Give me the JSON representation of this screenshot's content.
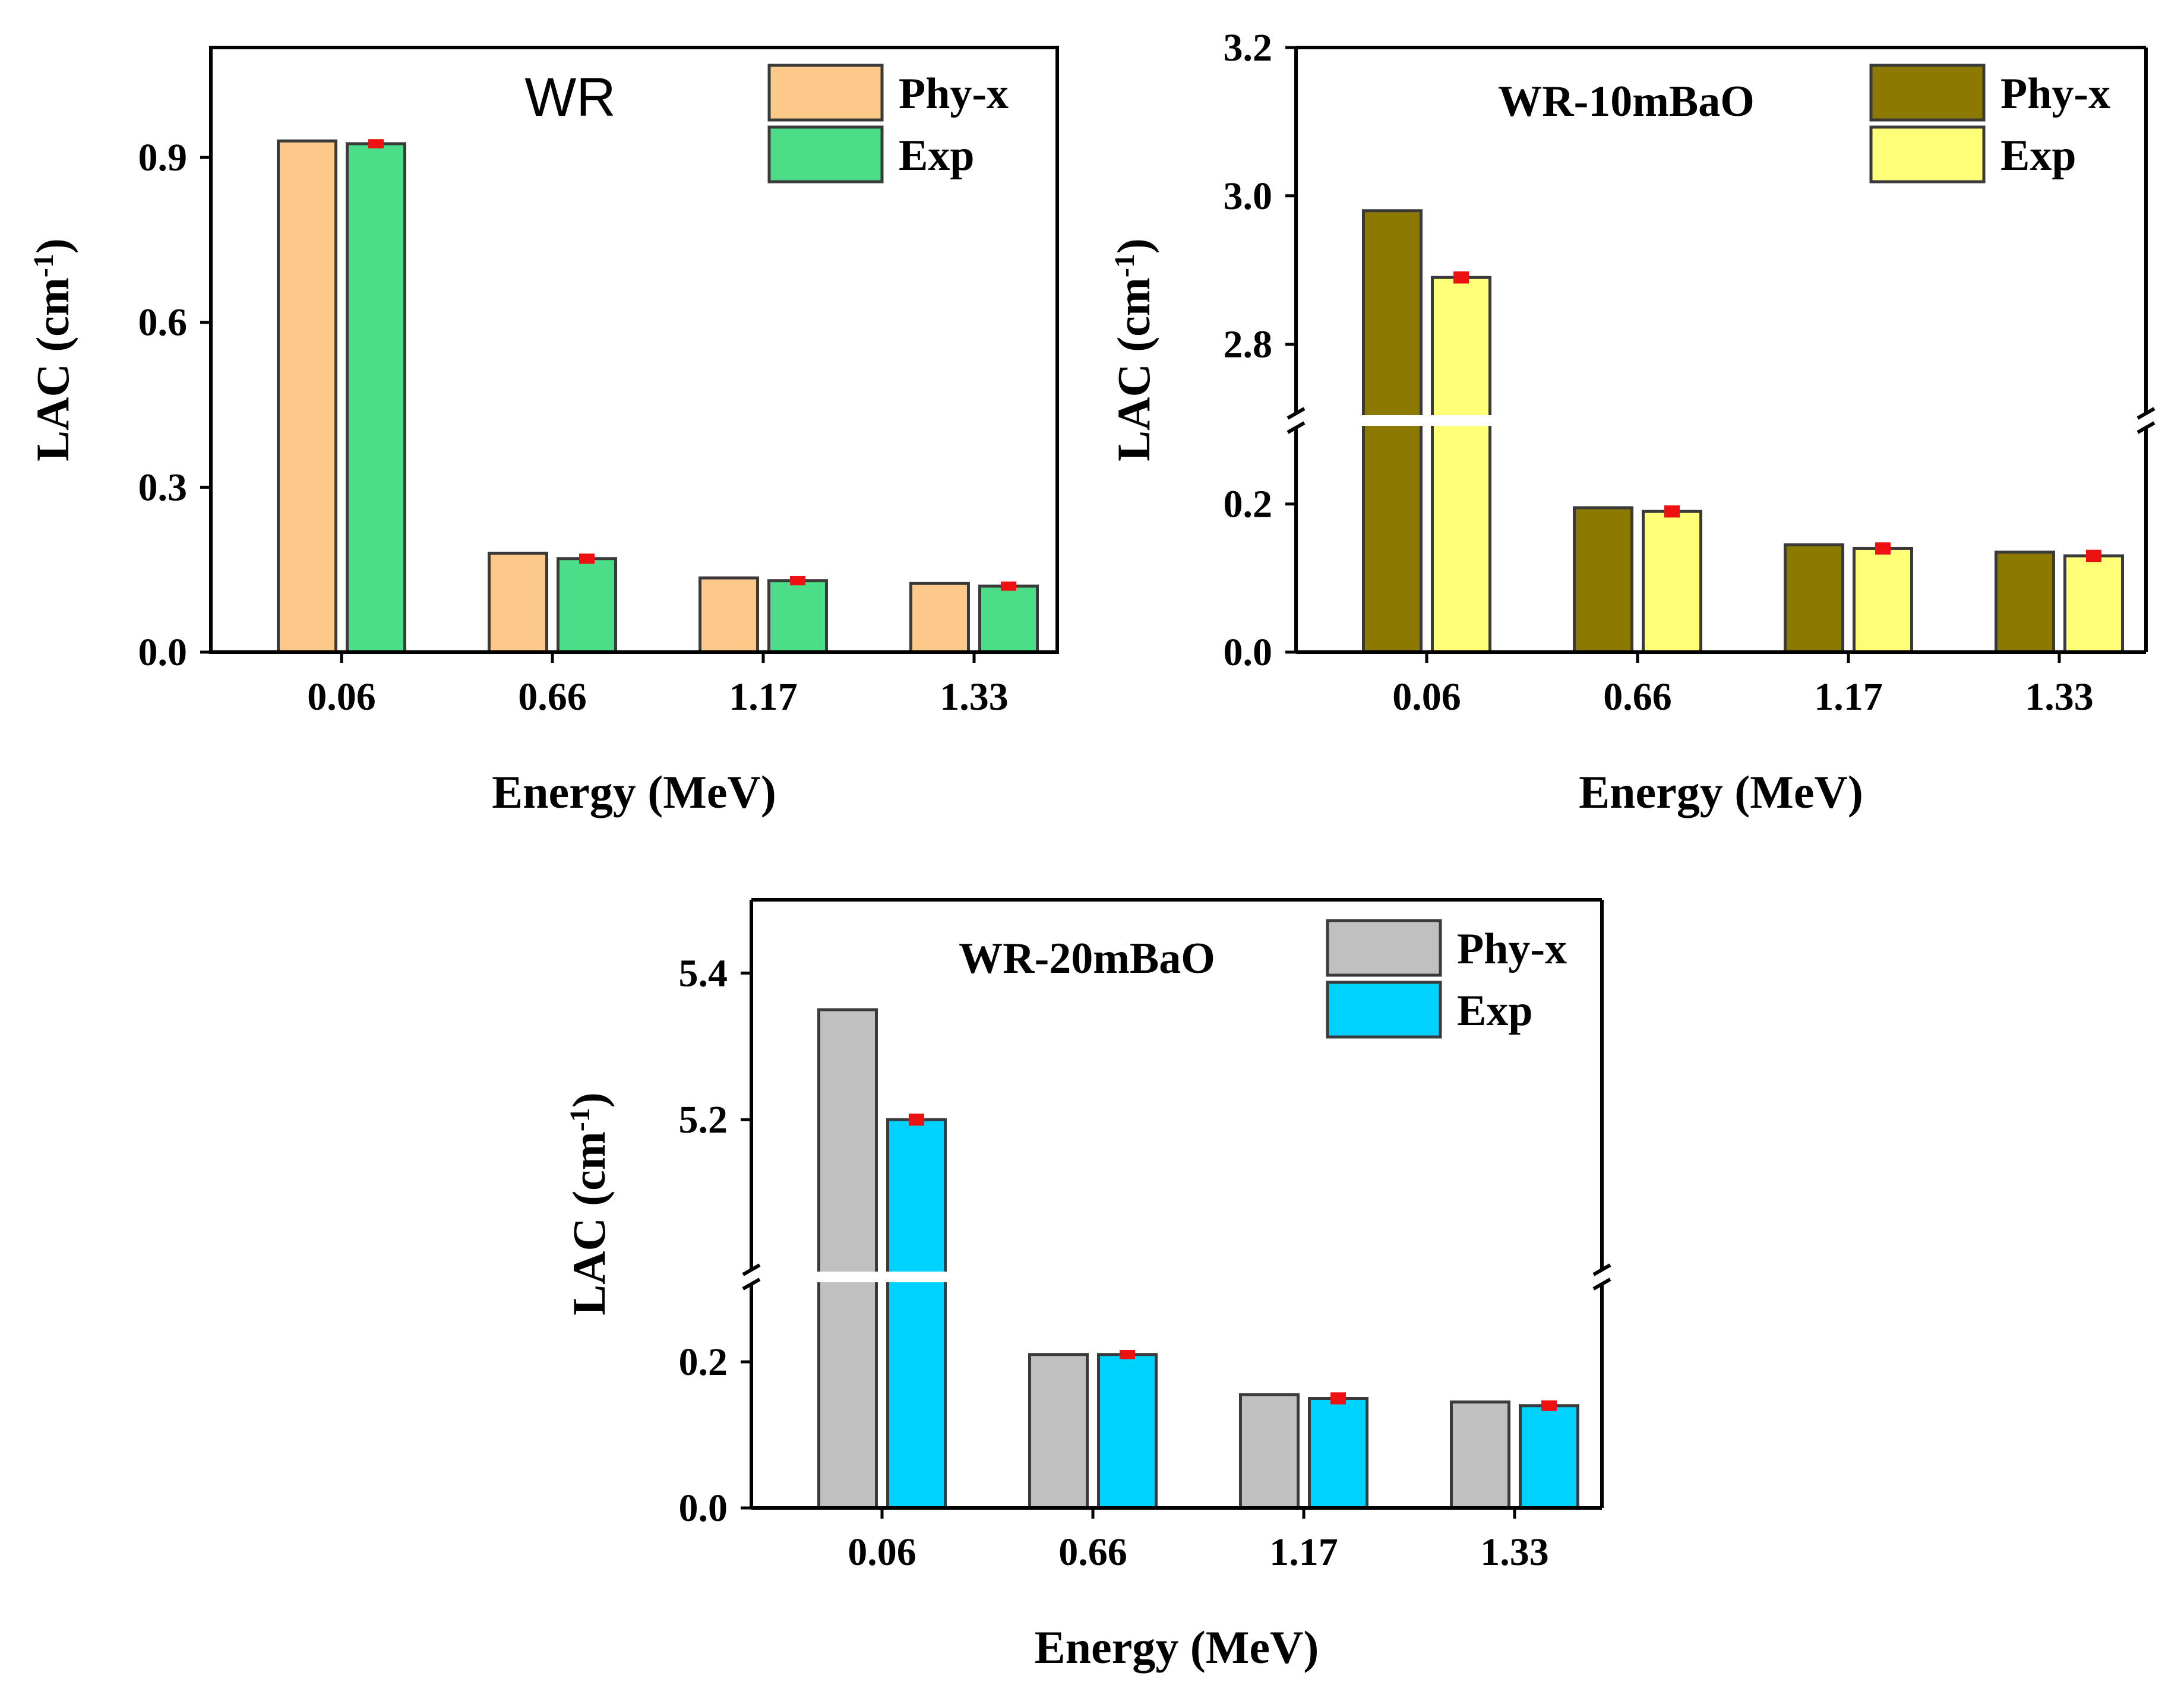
{
  "chart_data": [
    {
      "type": "bar",
      "title": "WR",
      "title_style": "sans",
      "xlabel": "Energy (MeV)",
      "ylabel_main": "LAC (cm",
      "ylabel_sup": "-1",
      "ylabel_close": ")",
      "categories": [
        "0.06",
        "0.66",
        "1.17",
        "1.33"
      ],
      "series": [
        {
          "name": "Phy-x",
          "color": "#fcc98a",
          "values": [
            0.93,
            0.18,
            0.135,
            0.125
          ],
          "errors": null
        },
        {
          "name": "Exp",
          "color": "#4cdd88",
          "values": [
            0.925,
            0.17,
            0.13,
            0.12
          ],
          "errors": [
            0.004,
            0.005,
            0.004,
            0.004
          ]
        }
      ],
      "ylim": [
        0,
        1.1
      ],
      "yticks": [
        "0.0",
        "0.3",
        "0.6",
        "0.9"
      ],
      "ytick_values": [
        0,
        0.3,
        0.6,
        0.9
      ],
      "broken": false,
      "legend_position": "top-right"
    },
    {
      "type": "bar",
      "title": "WR-10mBaO",
      "title_style": "serif",
      "xlabel": "Energy (MeV)",
      "ylabel_main": "LAC (cm",
      "ylabel_sup": "-1",
      "ylabel_close": ")",
      "categories": [
        "0.06",
        "0.66",
        "1.17",
        "1.33"
      ],
      "series": [
        {
          "name": "Phy-x",
          "color": "#8c7a00",
          "values": [
            2.98,
            0.195,
            0.145,
            0.135
          ],
          "errors": null
        },
        {
          "name": "Exp",
          "color": "#ffff78",
          "values": [
            2.89,
            0.19,
            0.14,
            0.13
          ],
          "errors": [
            0.005,
            0.005,
            0.005,
            0.005
          ]
        }
      ],
      "ylim_lower": [
        0,
        0.3
      ],
      "ylim_upper": [
        2.71,
        3.2
      ],
      "yticks_lower": [
        "0.0",
        "0.2"
      ],
      "ytick_values_lower": [
        0,
        0.2
      ],
      "yticks_upper": [
        "2.8",
        "3.0",
        "3.2"
      ],
      "ytick_values_upper": [
        2.8,
        3.0,
        3.2
      ],
      "broken": true,
      "legend_position": "top-right"
    },
    {
      "type": "bar",
      "title": "WR-20mBaO",
      "title_style": "serif",
      "xlabel": "Energy (MeV)",
      "ylabel_main": "LAC (cm",
      "ylabel_sup": "-1",
      "ylabel_close": ")",
      "categories": [
        "0.06",
        "0.66",
        "1.17",
        "1.33"
      ],
      "series": [
        {
          "name": "Phy-x",
          "color": "#c0c0c0",
          "values": [
            5.35,
            0.21,
            0.155,
            0.145
          ],
          "errors": null
        },
        {
          "name": "Exp",
          "color": "#00d2ff",
          "values": [
            5.2,
            0.21,
            0.15,
            0.14
          ],
          "errors": [
            0.005,
            0.003,
            0.005,
            0.004
          ]
        }
      ],
      "ylim_lower": [
        0,
        0.3
      ],
      "ylim_upper": [
        5.0,
        5.5
      ],
      "yticks_lower": [
        "0.0",
        "0.2"
      ],
      "ytick_values_lower": [
        0,
        0.2
      ],
      "yticks_upper": [
        "5.2",
        "5.4"
      ],
      "ytick_values_upper": [
        5.2,
        5.4
      ],
      "broken": true,
      "legend_position": "top-right"
    }
  ]
}
